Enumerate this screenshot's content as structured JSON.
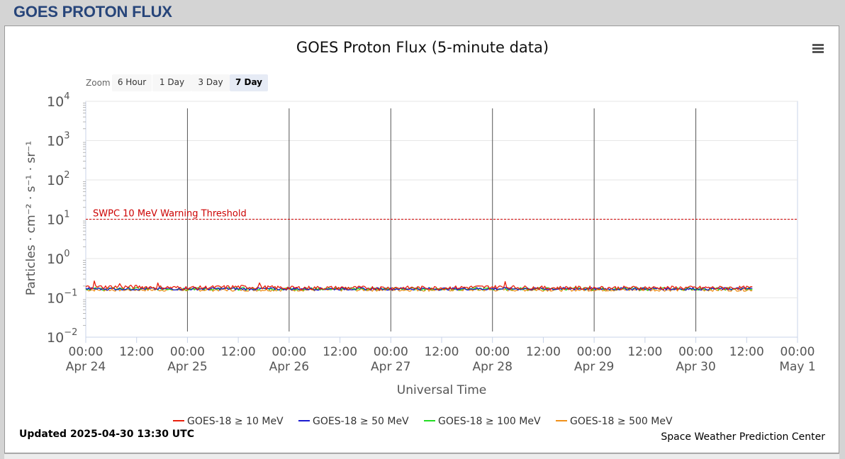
{
  "page": {
    "title": "GOES PROTON FLUX"
  },
  "toolbar": {
    "zoom_label": "Zoom",
    "zoom_buttons": [
      "6 Hour",
      "1 Day",
      "3 Day",
      "7 Day"
    ],
    "active_zoom": "7 Day",
    "menu_icon": "hamburger-menu-icon"
  },
  "footer": {
    "updated": "Updated 2025-04-30 13:30 UTC",
    "credit": "Space Weather Prediction Center"
  },
  "colors": {
    "title": "#27457a",
    "threshold": "#cc0000",
    "gridline": "#e6e6e6",
    "day_divider": "#555555"
  },
  "chart_data": {
    "type": "line",
    "title": "GOES Proton Flux (5-minute data)",
    "xlabel": "Universal Time",
    "ylabel": "Particles · cm⁻² · s⁻¹ · sr⁻¹",
    "yscale": "log",
    "ylim": [
      0.01,
      10000
    ],
    "y_ticks": [
      {
        "value": 10000,
        "base": "10",
        "exp": "4"
      },
      {
        "value": 1000,
        "base": "10",
        "exp": "3"
      },
      {
        "value": 100,
        "base": "10",
        "exp": "2"
      },
      {
        "value": 10,
        "base": "10",
        "exp": "1"
      },
      {
        "value": 1,
        "base": "10",
        "exp": "0"
      },
      {
        "value": 0.1,
        "base": "10",
        "exp": "−1"
      },
      {
        "value": 0.01,
        "base": "10",
        "exp": "−2"
      }
    ],
    "xlim": [
      "2025-04-24 00:00",
      "2025-05-01 00:00"
    ],
    "x_ticks": [
      {
        "time": "2025-04-24 00:00",
        "label1": "00:00",
        "label2": "Apr 24"
      },
      {
        "time": "2025-04-24 12:00",
        "label1": "12:00",
        "label2": ""
      },
      {
        "time": "2025-04-25 00:00",
        "label1": "00:00",
        "label2": "Apr 25"
      },
      {
        "time": "2025-04-25 12:00",
        "label1": "12:00",
        "label2": ""
      },
      {
        "time": "2025-04-26 00:00",
        "label1": "00:00",
        "label2": "Apr 26"
      },
      {
        "time": "2025-04-26 12:00",
        "label1": "12:00",
        "label2": ""
      },
      {
        "time": "2025-04-27 00:00",
        "label1": "00:00",
        "label2": "Apr 27"
      },
      {
        "time": "2025-04-27 12:00",
        "label1": "12:00",
        "label2": ""
      },
      {
        "time": "2025-04-28 00:00",
        "label1": "00:00",
        "label2": "Apr 28"
      },
      {
        "time": "2025-04-28 12:00",
        "label1": "12:00",
        "label2": ""
      },
      {
        "time": "2025-04-29 00:00",
        "label1": "00:00",
        "label2": "Apr 29"
      },
      {
        "time": "2025-04-29 12:00",
        "label1": "12:00",
        "label2": ""
      },
      {
        "time": "2025-04-30 00:00",
        "label1": "00:00",
        "label2": "Apr 30"
      },
      {
        "time": "2025-04-30 12:00",
        "label1": "12:00",
        "label2": ""
      },
      {
        "time": "2025-05-01 00:00",
        "label1": "00:00",
        "label2": "May 1"
      }
    ],
    "day_dividers": [
      "2025-04-25 00:00",
      "2025-04-26 00:00",
      "2025-04-27 00:00",
      "2025-04-28 00:00",
      "2025-04-29 00:00",
      "2025-04-30 00:00"
    ],
    "threshold": {
      "value": 10,
      "label": "SWPC 10 MeV Warning Threshold",
      "color": "#cc0000"
    },
    "grid": true,
    "legend_position": "bottom",
    "series": [
      {
        "name": "GOES-18 ≥ 10 MeV",
        "color": "#e8200c",
        "data": [
          [
            "2025-04-24 00:00",
            0.19
          ],
          [
            "2025-04-24 12:00",
            0.19
          ],
          [
            "2025-04-25 00:00",
            0.18
          ],
          [
            "2025-04-25 12:00",
            0.19
          ],
          [
            "2025-04-26 00:00",
            0.18
          ],
          [
            "2025-04-26 12:00",
            0.18
          ],
          [
            "2025-04-27 00:00",
            0.18
          ],
          [
            "2025-04-27 12:00",
            0.18
          ],
          [
            "2025-04-28 00:00",
            0.19
          ],
          [
            "2025-04-28 12:00",
            0.18
          ],
          [
            "2025-04-29 00:00",
            0.18
          ],
          [
            "2025-04-29 12:00",
            0.18
          ],
          [
            "2025-04-30 00:00",
            0.18
          ],
          [
            "2025-04-30 13:30",
            0.18
          ]
        ],
        "peaks": [
          [
            "2025-04-24 02:00",
            0.27
          ],
          [
            "2025-04-24 08:00",
            0.23
          ],
          [
            "2025-04-24 17:00",
            0.24
          ],
          [
            "2025-04-25 17:00",
            0.24
          ],
          [
            "2025-04-28 03:00",
            0.26
          ]
        ]
      },
      {
        "name": "GOES-18 ≥ 50 MeV",
        "color": "#1a1ad0",
        "data": [
          [
            "2025-04-24 00:00",
            0.17
          ],
          [
            "2025-04-25 00:00",
            0.17
          ],
          [
            "2025-04-26 00:00",
            0.17
          ],
          [
            "2025-04-27 00:00",
            0.17
          ],
          [
            "2025-04-28 00:00",
            0.17
          ],
          [
            "2025-04-29 00:00",
            0.17
          ],
          [
            "2025-04-30 00:00",
            0.17
          ],
          [
            "2025-04-30 13:30",
            0.17
          ]
        ]
      },
      {
        "name": "GOES-18 ≥ 100 MeV",
        "color": "#22dd22",
        "data": [
          [
            "2025-04-24 00:00",
            0.17
          ],
          [
            "2025-04-25 00:00",
            0.17
          ],
          [
            "2025-04-26 00:00",
            0.17
          ],
          [
            "2025-04-27 00:00",
            0.17
          ],
          [
            "2025-04-28 00:00",
            0.17
          ],
          [
            "2025-04-29 00:00",
            0.17
          ],
          [
            "2025-04-30 00:00",
            0.17
          ],
          [
            "2025-04-30 13:30",
            0.17
          ]
        ]
      },
      {
        "name": "GOES-18 ≥ 500 MeV",
        "color": "#f0901a",
        "data": [
          [
            "2025-04-24 00:00",
            0.16
          ],
          [
            "2025-04-25 00:00",
            0.16
          ],
          [
            "2025-04-26 00:00",
            0.16
          ],
          [
            "2025-04-27 00:00",
            0.16
          ],
          [
            "2025-04-28 00:00",
            0.16
          ],
          [
            "2025-04-29 00:00",
            0.16
          ],
          [
            "2025-04-30 00:00",
            0.16
          ],
          [
            "2025-04-30 13:30",
            0.16
          ]
        ]
      }
    ]
  }
}
